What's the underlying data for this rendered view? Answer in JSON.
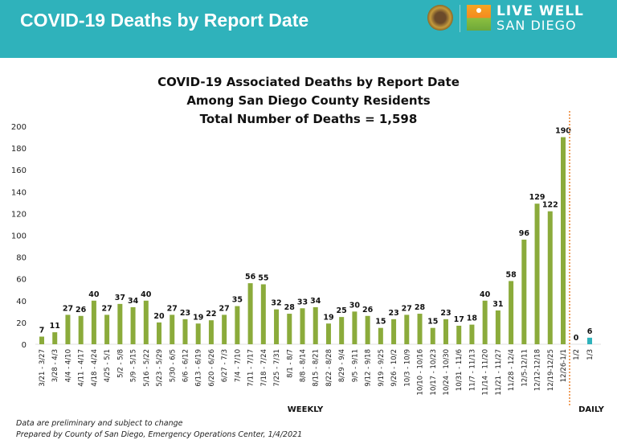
{
  "header": {
    "title": "COVID-19 Deaths by Report Date",
    "logo_line1": "LIVE WELL",
    "logo_line2": "SAN DIEGO",
    "background_color": "#2fb2bb"
  },
  "chart_data": {
    "type": "bar",
    "title": [
      "COVID-19 Associated Deaths by Report Date",
      "Among San Diego County Residents",
      "Total Number of Deaths = 1,598"
    ],
    "xlabel_weekly": "WEEKLY",
    "xlabel_daily": "DAILY",
    "ylabel": "",
    "ylim": [
      0,
      200
    ],
    "yticks": [
      0,
      20,
      40,
      60,
      80,
      100,
      120,
      140,
      160,
      180,
      200
    ],
    "grid": false,
    "series": [
      {
        "name": "Weekly",
        "color": "#8bab3b",
        "categories": [
          "3/21 - 3/27",
          "3/28 - 4/3",
          "4/4 - 4/10",
          "4/11 - 4/17",
          "4/18 - 4/24",
          "4/25 - 5/1",
          "5/2 - 5/8",
          "5/9 - 5/15",
          "5/16 - 5/22",
          "5/23 - 5/29",
          "5/30 - 6/5",
          "6/6 - 6/12",
          "6/13 - 6/19",
          "6/20 - 6/26",
          "6/27 - 7/3",
          "7/4 - 7/10",
          "7/11 - 7/17",
          "7/18 - 7/24",
          "7/25 - 7/31",
          "8/1 - 8/7",
          "8/8 - 8/14",
          "8/15 - 8/21",
          "8/22 - 8/28",
          "8/29 - 9/4",
          "9/5 - 9/11",
          "9/12 - 9/18",
          "9/19 - 9/25",
          "9/26 - 10/2",
          "10/3 - 10/9",
          "10/10 - 10/16",
          "10/17 - 10/23",
          "10/24 - 10/30",
          "10/31 - 11/6",
          "11/7 - 11/13",
          "11/14 - 11/20",
          "11/21 - 11/27",
          "11/28 - 12/4",
          "12/5-12/11",
          "12/12-12/18",
          "12/19-12/25",
          "12/26-1/1"
        ],
        "values": [
          7,
          11,
          27,
          26,
          40,
          27,
          37,
          34,
          40,
          20,
          27,
          23,
          19,
          22,
          27,
          35,
          56,
          55,
          32,
          28,
          33,
          34,
          19,
          25,
          30,
          26,
          15,
          23,
          27,
          28,
          15,
          23,
          17,
          18,
          40,
          31,
          58,
          96,
          129,
          122,
          190
        ]
      },
      {
        "name": "Daily",
        "color": "#2fb2bb",
        "categories": [
          "1/2",
          "1/3"
        ],
        "values": [
          0,
          6
        ]
      }
    ],
    "divider_color": "#f0a060"
  },
  "footnotes": {
    "line1": "Data are preliminary and subject to change",
    "line2": "Prepared by County of San Diego, Emergency Operations Center, 1/4/2021"
  }
}
